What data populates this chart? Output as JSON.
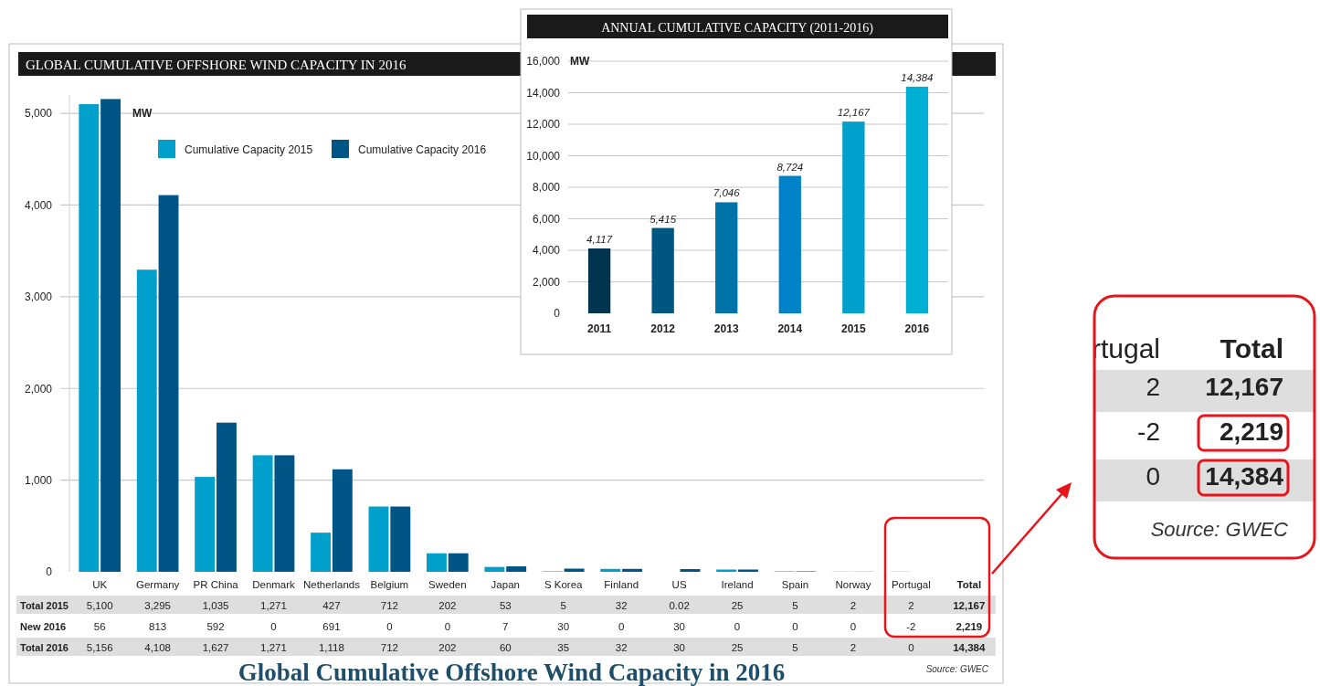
{
  "chart_data": [
    {
      "type": "bar",
      "title": "GLOBAL CUMULATIVE OFFSHORE WIND CAPACITY IN 2016",
      "ylabel": "MW",
      "categories": [
        "UK",
        "Germany",
        "PR China",
        "Denmark",
        "Netherlands",
        "Belgium",
        "Sweden",
        "Japan",
        "S Korea",
        "Finland",
        "US",
        "Ireland",
        "Spain",
        "Norway",
        "Portugal",
        "Total"
      ],
      "series": [
        {
          "name": "Cumulative Capacity 2015",
          "color": "#00a0cc",
          "values": [
            5100,
            3295,
            1035,
            1271,
            427,
            712,
            202,
            53,
            5,
            32,
            0.02,
            25,
            5,
            2,
            2,
            null
          ],
          "value_labels": [
            "5,100",
            "3,295",
            "1,035",
            "1,271",
            "427",
            "712",
            "202",
            "53",
            "5",
            "32",
            "0.02",
            "25",
            "5",
            "2",
            "2",
            "12,167"
          ]
        },
        {
          "name": "Cumulative Capacity 2016",
          "color": "#005587",
          "values": [
            5156,
            4108,
            1627,
            1271,
            1118,
            712,
            202,
            60,
            35,
            32,
            30,
            25,
            5,
            2,
            0,
            null
          ],
          "value_labels": [
            "5,156",
            "4,108",
            "1,627",
            "1,271",
            "1,118",
            "712",
            "202",
            "60",
            "35",
            "32",
            "30",
            "25",
            "5",
            "2",
            "0",
            "14,384"
          ]
        }
      ],
      "ylim": [
        0,
        5200
      ],
      "yticks": [
        0,
        {
          "value": 1000,
          "label": "1,000"
        },
        {
          "value": 2000,
          "label": "2,000"
        },
        {
          "value": 3000,
          "label": "3,000"
        },
        {
          "value": 4000,
          "label": "4,000"
        },
        {
          "value": 5000,
          "label": "5,000"
        }
      ],
      "grid": "y",
      "legend": "top",
      "annotations": [
        "Total 2015",
        "New 2016",
        "Total 2016",
        "Global Cumulative Offshore Wind Capacity in 2016",
        "Source: GWEC",
        "rtugal",
        "56",
        "813",
        "592",
        "0",
        "691",
        "0",
        "0",
        "7",
        "30",
        "0",
        "30",
        "0",
        "0",
        "0",
        "-2",
        "2,219"
      ]
    },
    {
      "type": "bar",
      "title": "ANNUAL CUMULATIVE CAPACITY (2011-2016)",
      "ylabel": "MW",
      "categories": [
        "2011",
        "2012",
        "2013",
        "2014",
        "2015",
        "2016"
      ],
      "values": [
        4117,
        5415,
        7046,
        8724,
        12167,
        14384
      ],
      "colors": [
        "#00344f",
        "#00567f",
        "#0073a8",
        "#0082c8",
        "#00a0cc",
        "#00b0d4"
      ],
      "ylim": [
        0,
        16000
      ],
      "yticks": [
        0,
        {
          "value": 2000,
          "label": "2,000"
        },
        {
          "value": 4000,
          "label": "4,000"
        },
        {
          "value": 6000,
          "label": "6,000"
        },
        {
          "value": 8000,
          "label": "8,000"
        },
        {
          "value": 10000,
          "label": "10,000"
        },
        {
          "value": 12000,
          "label": "12,000"
        },
        {
          "value": 14000,
          "label": "14,000"
        },
        {
          "value": 16000,
          "label": "16,000"
        }
      ],
      "value_labels": [
        "4,117",
        "5,415",
        "7,046",
        "8,724",
        "12,167",
        "14,384"
      ],
      "grid": "y"
    }
  ]
}
